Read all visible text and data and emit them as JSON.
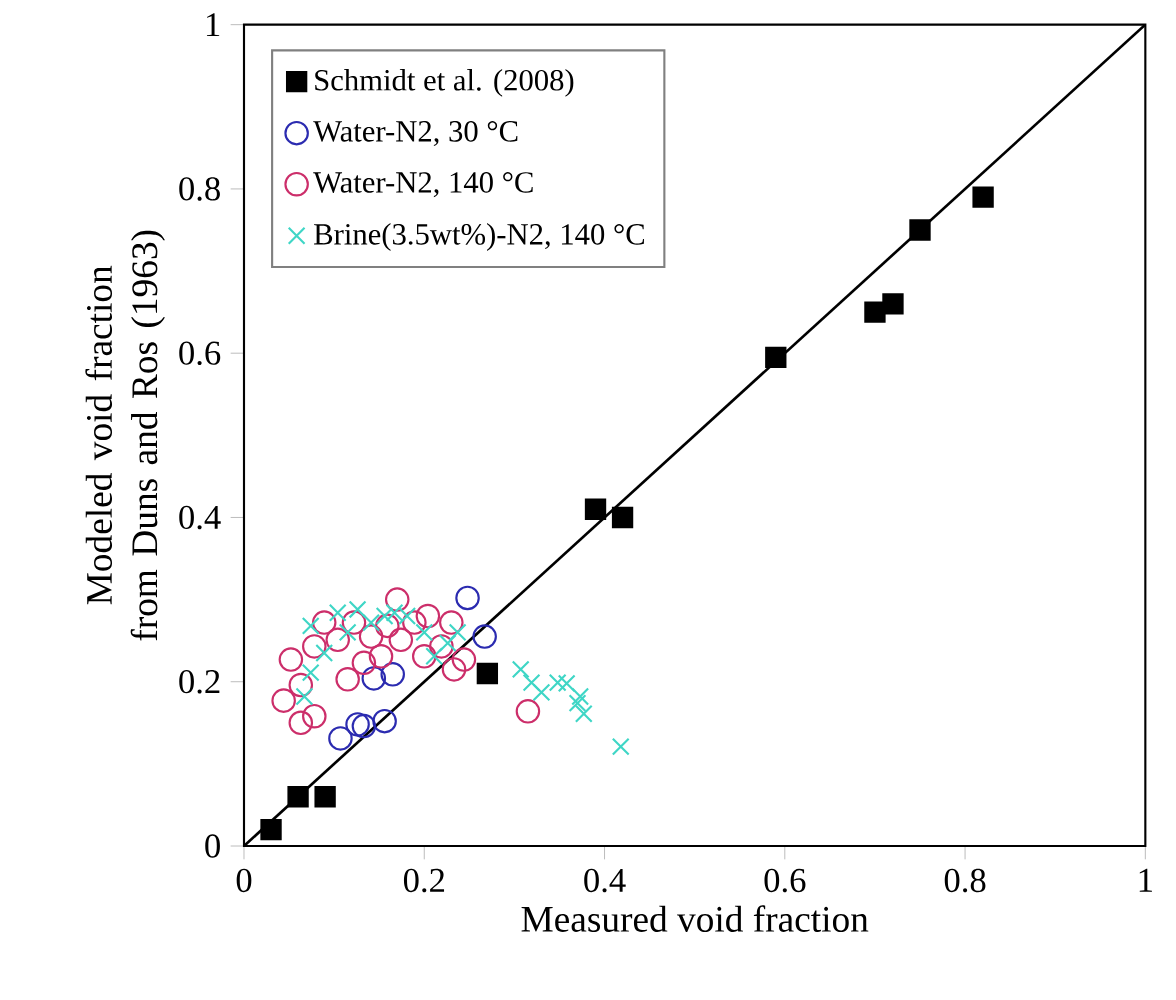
{
  "chart_data": {
    "type": "scatter",
    "xlabel": "Measured void fraction",
    "ylabel": "Modeled void fraction from Duns and Ros (1963)",
    "xlim": [
      0,
      1
    ],
    "ylim": [
      0,
      1
    ],
    "xticks": [
      0,
      0.2,
      0.4,
      0.6,
      0.8,
      1
    ],
    "yticks": [
      0,
      0.2,
      0.4,
      0.6,
      0.8,
      1
    ],
    "grid": false,
    "legend": "top left",
    "series": [
      {
        "name": "Schmidt et al. (2008)",
        "color": "#000000",
        "marker": "square",
        "x": [
          0.03,
          0.06,
          0.09,
          0.27,
          0.39,
          0.42,
          0.59,
          0.7,
          0.72,
          0.75,
          0.82
        ],
        "values": [
          0.02,
          0.06,
          0.06,
          0.21,
          0.41,
          0.4,
          0.595,
          0.65,
          0.66,
          0.75,
          0.79
        ]
      },
      {
        "name": "Water-N2, 30 °C",
        "color": "#2b2bb0",
        "marker": "circle",
        "x": [
          0.107,
          0.126,
          0.156,
          0.144,
          0.165,
          0.248,
          0.267,
          0.133
        ],
        "values": [
          0.131,
          0.148,
          0.152,
          0.204,
          0.209,
          0.302,
          0.255,
          0.146
        ]
      },
      {
        "name": "Water-N2, 140 °C",
        "color": "#cc2e6a",
        "marker": "circle",
        "x": [
          0.044,
          0.063,
          0.078,
          0.052,
          0.063,
          0.078,
          0.089,
          0.115,
          0.122,
          0.133,
          0.141,
          0.17,
          0.174,
          0.189,
          0.204,
          0.2,
          0.219,
          0.23,
          0.233,
          0.244,
          0.315,
          0.104,
          0.159,
          0.152
        ],
        "values": [
          0.177,
          0.15,
          0.158,
          0.227,
          0.196,
          0.243,
          0.272,
          0.203,
          0.272,
          0.223,
          0.255,
          0.3,
          0.251,
          0.272,
          0.28,
          0.231,
          0.243,
          0.272,
          0.215,
          0.227,
          0.164,
          0.251,
          0.268,
          0.231
        ]
      },
      {
        "name": "Brine(3.5wt%)-N2, 140 °C",
        "color": "#3fd6c6",
        "marker": "cross",
        "x": [
          0.074,
          0.089,
          0.104,
          0.126,
          0.141,
          0.156,
          0.181,
          0.2,
          0.211,
          0.226,
          0.237,
          0.067,
          0.074,
          0.115,
          0.167,
          0.307,
          0.319,
          0.33,
          0.348,
          0.37,
          0.358,
          0.373,
          0.377,
          0.418
        ],
        "values": [
          0.268,
          0.235,
          0.284,
          0.288,
          0.272,
          0.28,
          0.28,
          0.26,
          0.231,
          0.247,
          0.26,
          0.182,
          0.211,
          0.26,
          0.284,
          0.215,
          0.199,
          0.187,
          0.199,
          0.174,
          0.198,
          0.182,
          0.161,
          0.121
        ]
      },
      {
        "type": "line",
        "color": "#000000",
        "marker": "none",
        "line_style": "solid",
        "x": [
          0,
          1
        ],
        "values": [
          0,
          1
        ]
      }
    ]
  }
}
